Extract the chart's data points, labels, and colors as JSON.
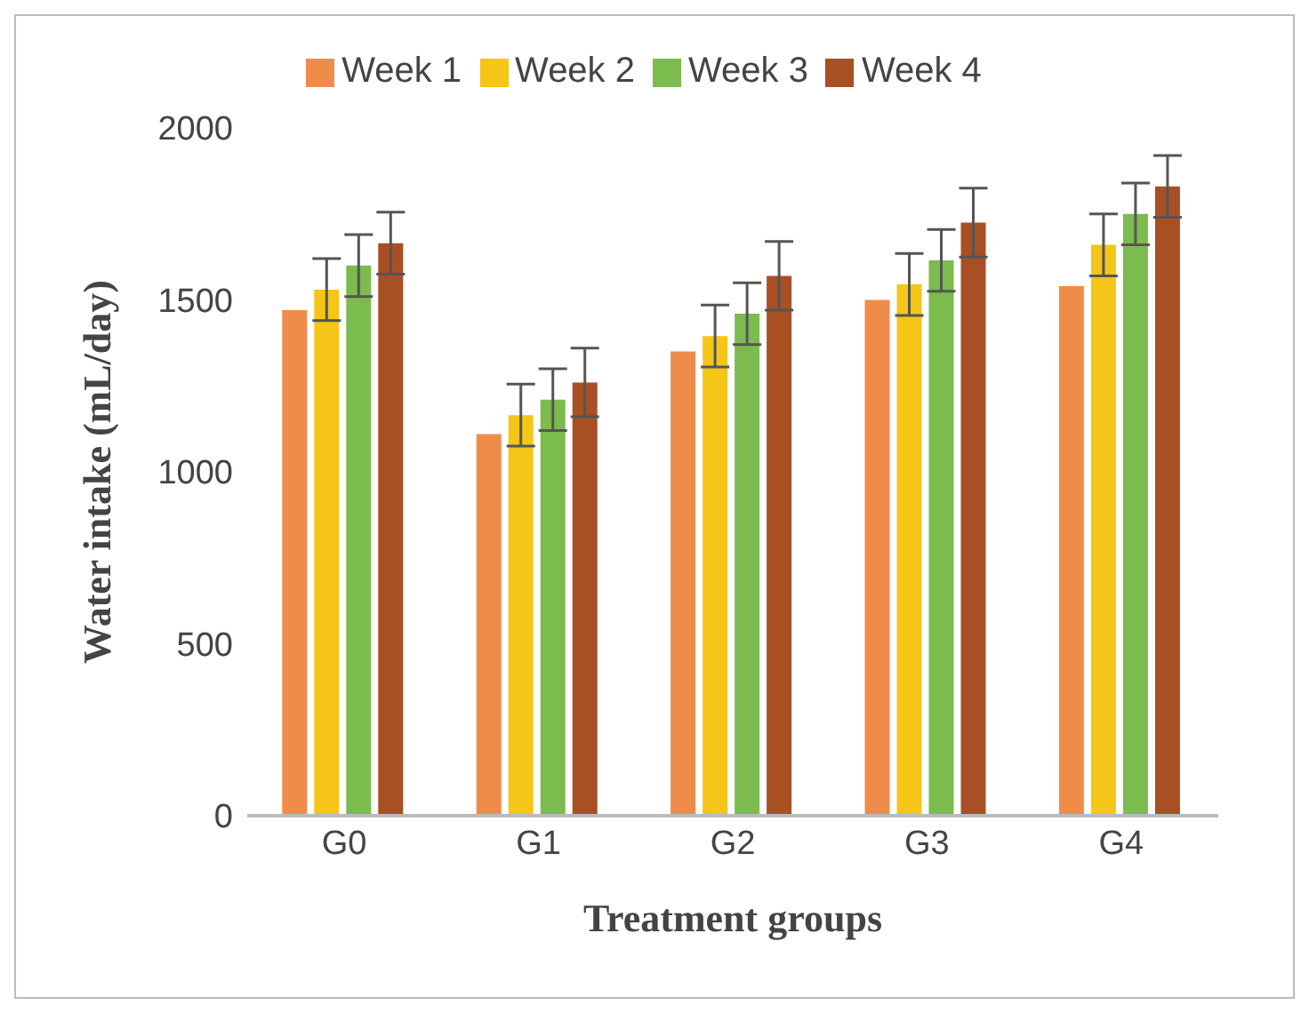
{
  "chart_data": {
    "type": "bar",
    "categories": [
      "G0",
      "G1",
      "G2",
      "G3",
      "G4"
    ],
    "xlabel": "Treatment groups",
    "ylabel": "Water intake (mL/day)",
    "ylim": [
      0,
      2000
    ],
    "yticks": [
      0,
      500,
      1000,
      1500,
      2000
    ],
    "grid": false,
    "legend": "top",
    "series": [
      {
        "name": "Week 1",
        "color": "#f08c4a",
        "values": [
          1470,
          1110,
          1350,
          1500,
          1540
        ]
      },
      {
        "name": "Week 2",
        "color": "#f5c518",
        "values": [
          1530,
          1165,
          1395,
          1545,
          1660
        ],
        "errors": [
          90,
          90,
          90,
          90,
          90
        ]
      },
      {
        "name": "Week 3",
        "color": "#7cbb4e",
        "values": [
          1600,
          1210,
          1460,
          1615,
          1750
        ],
        "errors": [
          90,
          90,
          90,
          90,
          90
        ]
      },
      {
        "name": "Week 4",
        "color": "#a84f24",
        "values": [
          1665,
          1260,
          1570,
          1725,
          1830
        ],
        "errors": [
          90,
          100,
          100,
          100,
          90
        ]
      }
    ]
  }
}
